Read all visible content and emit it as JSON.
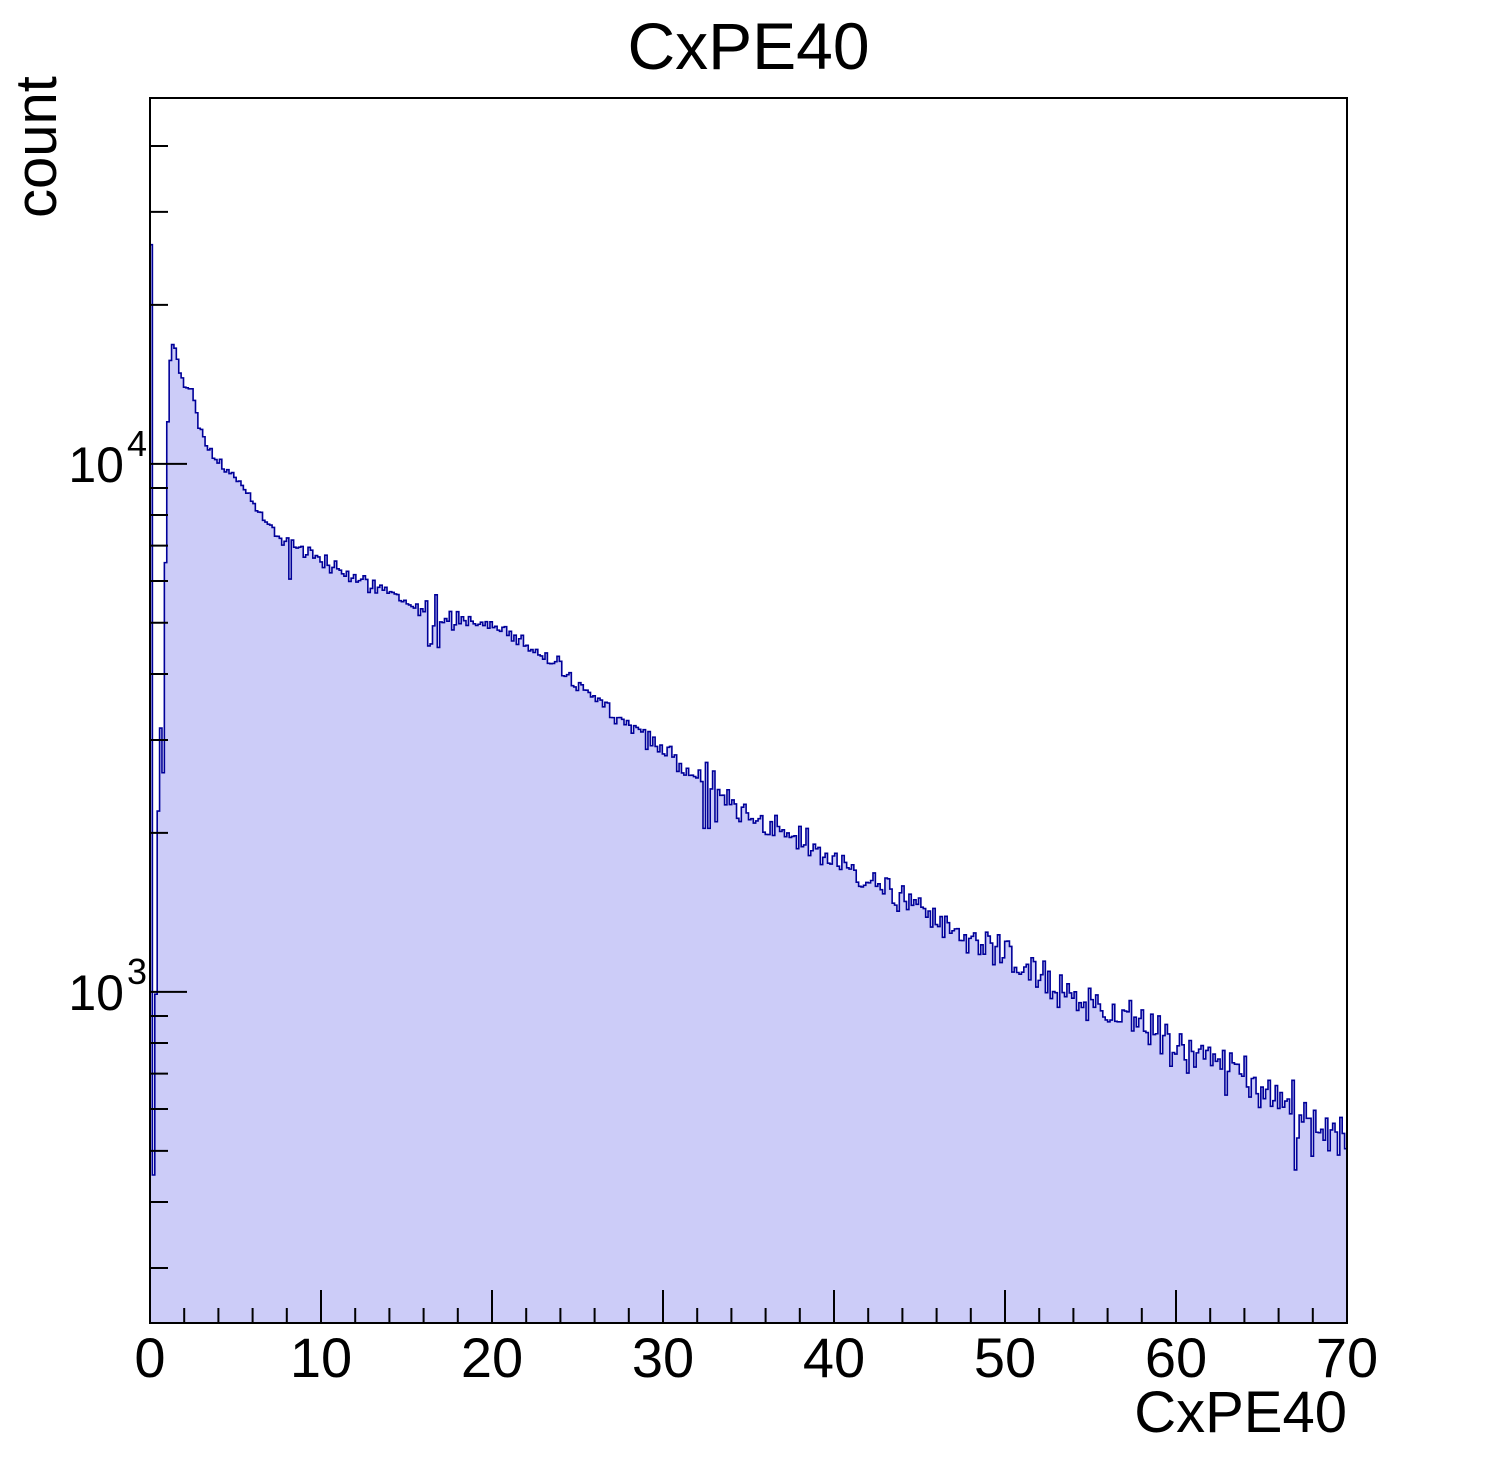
{
  "chart_data": {
    "type": "bar",
    "subtype": "step-histogram",
    "title": "CxPE40",
    "xlabel": "CxPE40",
    "ylabel": "count",
    "x_range": [
      0,
      70
    ],
    "n_bins": 500,
    "y_scale": "log",
    "y_range": [
      236,
      49300
    ],
    "grid": false,
    "legend": "none",
    "x_ticks": [
      0,
      10,
      20,
      30,
      40,
      50,
      60,
      70
    ],
    "x_minor_step": 2,
    "y_major_ticks": [
      {
        "value": 1000,
        "mantissa": "10",
        "exponent": "3"
      },
      {
        "value": 10000,
        "mantissa": "10",
        "exponent": "4"
      }
    ],
    "first_bins": [
      26000,
      450,
      990,
      2200,
      3160,
      2600,
      6500
    ],
    "profile": [
      [
        0.98,
        9000
      ],
      [
        1.06,
        12800
      ],
      [
        1.2,
        16300
      ],
      [
        1.38,
        17100
      ],
      [
        1.6,
        15800
      ],
      [
        1.85,
        14700
      ],
      [
        2.1,
        13800
      ],
      [
        2.35,
        14200
      ],
      [
        2.6,
        13000
      ],
      [
        3.0,
        11500
      ],
      [
        3.5,
        10500
      ],
      [
        4.0,
        10000
      ],
      [
        4.5,
        9700
      ],
      [
        5.0,
        9450
      ],
      [
        5.5,
        9000
      ],
      [
        6.0,
        8500
      ],
      [
        6.5,
        8050
      ],
      [
        7.0,
        7650
      ],
      [
        7.5,
        7350
      ],
      [
        8.0,
        7150
      ],
      [
        8.6,
        6900
      ],
      [
        9.2,
        6750
      ],
      [
        10,
        6550
      ],
      [
        11,
        6350
      ],
      [
        12,
        6100
      ],
      [
        13,
        5900
      ],
      [
        14,
        5650
      ],
      [
        15,
        5400
      ],
      [
        16,
        5200
      ],
      [
        17,
        5100
      ],
      [
        18,
        5080
      ],
      [
        19,
        5000
      ],
      [
        20,
        4950
      ],
      [
        21,
        4800
      ],
      [
        22,
        4550
      ],
      [
        23,
        4300
      ],
      [
        24,
        4050
      ],
      [
        25,
        3800
      ],
      [
        26,
        3600
      ],
      [
        27,
        3400
      ],
      [
        28,
        3200
      ],
      [
        29,
        3000
      ],
      [
        30,
        2870
      ],
      [
        31,
        2720
      ],
      [
        32,
        2550
      ],
      [
        33,
        2400
      ],
      [
        34,
        2280
      ],
      [
        35,
        2170
      ],
      [
        36,
        2070
      ],
      [
        37,
        2000
      ],
      [
        38,
        1950
      ],
      [
        39,
        1850
      ],
      [
        40,
        1760
      ],
      [
        41,
        1690
      ],
      [
        42,
        1620
      ],
      [
        43,
        1560
      ],
      [
        44,
        1500
      ],
      [
        45,
        1430
      ],
      [
        46,
        1360
      ],
      [
        47,
        1310
      ],
      [
        48,
        1260
      ],
      [
        49,
        1210
      ],
      [
        50,
        1160
      ],
      [
        51,
        1110
      ],
      [
        52,
        1065
      ],
      [
        53,
        1025
      ],
      [
        54,
        990
      ],
      [
        55,
        955
      ],
      [
        56,
        925
      ],
      [
        57,
        895
      ],
      [
        58,
        865
      ],
      [
        59,
        835
      ],
      [
        60,
        810
      ],
      [
        61,
        780
      ],
      [
        62,
        750
      ],
      [
        63,
        720
      ],
      [
        64,
        690
      ],
      [
        65,
        655
      ],
      [
        66,
        625
      ],
      [
        67,
        595
      ],
      [
        68,
        565
      ],
      [
        69,
        540
      ],
      [
        70,
        520
      ]
    ],
    "outliers": [
      [
        8.19,
        6050
      ],
      [
        16.17,
        5500
      ],
      [
        16.31,
        4520
      ],
      [
        16.45,
        4560
      ],
      [
        16.73,
        5650
      ],
      [
        16.87,
        4490
      ],
      [
        32.4,
        2040
      ],
      [
        32.55,
        2720
      ],
      [
        32.7,
        2040
      ],
      [
        33.0,
        2620
      ],
      [
        33.15,
        2100
      ],
      [
        66.9,
        680
      ],
      [
        67.05,
        460
      ]
    ],
    "noise": {
      "seed": 42,
      "scale": 1.3
    },
    "colors": {
      "fill": "#ccccf8",
      "line": "#000099",
      "axis": "#000000",
      "text": "#000000",
      "background": "#ffffff"
    }
  }
}
